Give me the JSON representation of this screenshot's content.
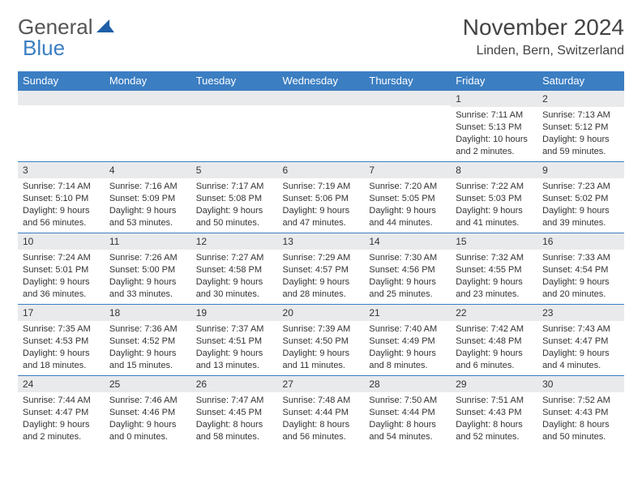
{
  "brand": {
    "part1": "General",
    "part2": "Blue"
  },
  "title": "November 2024",
  "location": "Linden, Bern, Switzerland",
  "colors": {
    "header_bar": "#3b7ec2",
    "daynum_bg": "#e9eaec",
    "text": "#333333",
    "background": "#ffffff"
  },
  "day_headers": [
    "Sunday",
    "Monday",
    "Tuesday",
    "Wednesday",
    "Thursday",
    "Friday",
    "Saturday"
  ],
  "weeks": [
    [
      {
        "n": "",
        "sunrise": "",
        "sunset": "",
        "daylight": ""
      },
      {
        "n": "",
        "sunrise": "",
        "sunset": "",
        "daylight": ""
      },
      {
        "n": "",
        "sunrise": "",
        "sunset": "",
        "daylight": ""
      },
      {
        "n": "",
        "sunrise": "",
        "sunset": "",
        "daylight": ""
      },
      {
        "n": "",
        "sunrise": "",
        "sunset": "",
        "daylight": ""
      },
      {
        "n": "1",
        "sunrise": "Sunrise: 7:11 AM",
        "sunset": "Sunset: 5:13 PM",
        "daylight": "Daylight: 10 hours and 2 minutes."
      },
      {
        "n": "2",
        "sunrise": "Sunrise: 7:13 AM",
        "sunset": "Sunset: 5:12 PM",
        "daylight": "Daylight: 9 hours and 59 minutes."
      }
    ],
    [
      {
        "n": "3",
        "sunrise": "Sunrise: 7:14 AM",
        "sunset": "Sunset: 5:10 PM",
        "daylight": "Daylight: 9 hours and 56 minutes."
      },
      {
        "n": "4",
        "sunrise": "Sunrise: 7:16 AM",
        "sunset": "Sunset: 5:09 PM",
        "daylight": "Daylight: 9 hours and 53 minutes."
      },
      {
        "n": "5",
        "sunrise": "Sunrise: 7:17 AM",
        "sunset": "Sunset: 5:08 PM",
        "daylight": "Daylight: 9 hours and 50 minutes."
      },
      {
        "n": "6",
        "sunrise": "Sunrise: 7:19 AM",
        "sunset": "Sunset: 5:06 PM",
        "daylight": "Daylight: 9 hours and 47 minutes."
      },
      {
        "n": "7",
        "sunrise": "Sunrise: 7:20 AM",
        "sunset": "Sunset: 5:05 PM",
        "daylight": "Daylight: 9 hours and 44 minutes."
      },
      {
        "n": "8",
        "sunrise": "Sunrise: 7:22 AM",
        "sunset": "Sunset: 5:03 PM",
        "daylight": "Daylight: 9 hours and 41 minutes."
      },
      {
        "n": "9",
        "sunrise": "Sunrise: 7:23 AM",
        "sunset": "Sunset: 5:02 PM",
        "daylight": "Daylight: 9 hours and 39 minutes."
      }
    ],
    [
      {
        "n": "10",
        "sunrise": "Sunrise: 7:24 AM",
        "sunset": "Sunset: 5:01 PM",
        "daylight": "Daylight: 9 hours and 36 minutes."
      },
      {
        "n": "11",
        "sunrise": "Sunrise: 7:26 AM",
        "sunset": "Sunset: 5:00 PM",
        "daylight": "Daylight: 9 hours and 33 minutes."
      },
      {
        "n": "12",
        "sunrise": "Sunrise: 7:27 AM",
        "sunset": "Sunset: 4:58 PM",
        "daylight": "Daylight: 9 hours and 30 minutes."
      },
      {
        "n": "13",
        "sunrise": "Sunrise: 7:29 AM",
        "sunset": "Sunset: 4:57 PM",
        "daylight": "Daylight: 9 hours and 28 minutes."
      },
      {
        "n": "14",
        "sunrise": "Sunrise: 7:30 AM",
        "sunset": "Sunset: 4:56 PM",
        "daylight": "Daylight: 9 hours and 25 minutes."
      },
      {
        "n": "15",
        "sunrise": "Sunrise: 7:32 AM",
        "sunset": "Sunset: 4:55 PM",
        "daylight": "Daylight: 9 hours and 23 minutes."
      },
      {
        "n": "16",
        "sunrise": "Sunrise: 7:33 AM",
        "sunset": "Sunset: 4:54 PM",
        "daylight": "Daylight: 9 hours and 20 minutes."
      }
    ],
    [
      {
        "n": "17",
        "sunrise": "Sunrise: 7:35 AM",
        "sunset": "Sunset: 4:53 PM",
        "daylight": "Daylight: 9 hours and 18 minutes."
      },
      {
        "n": "18",
        "sunrise": "Sunrise: 7:36 AM",
        "sunset": "Sunset: 4:52 PM",
        "daylight": "Daylight: 9 hours and 15 minutes."
      },
      {
        "n": "19",
        "sunrise": "Sunrise: 7:37 AM",
        "sunset": "Sunset: 4:51 PM",
        "daylight": "Daylight: 9 hours and 13 minutes."
      },
      {
        "n": "20",
        "sunrise": "Sunrise: 7:39 AM",
        "sunset": "Sunset: 4:50 PM",
        "daylight": "Daylight: 9 hours and 11 minutes."
      },
      {
        "n": "21",
        "sunrise": "Sunrise: 7:40 AM",
        "sunset": "Sunset: 4:49 PM",
        "daylight": "Daylight: 9 hours and 8 minutes."
      },
      {
        "n": "22",
        "sunrise": "Sunrise: 7:42 AM",
        "sunset": "Sunset: 4:48 PM",
        "daylight": "Daylight: 9 hours and 6 minutes."
      },
      {
        "n": "23",
        "sunrise": "Sunrise: 7:43 AM",
        "sunset": "Sunset: 4:47 PM",
        "daylight": "Daylight: 9 hours and 4 minutes."
      }
    ],
    [
      {
        "n": "24",
        "sunrise": "Sunrise: 7:44 AM",
        "sunset": "Sunset: 4:47 PM",
        "daylight": "Daylight: 9 hours and 2 minutes."
      },
      {
        "n": "25",
        "sunrise": "Sunrise: 7:46 AM",
        "sunset": "Sunset: 4:46 PM",
        "daylight": "Daylight: 9 hours and 0 minutes."
      },
      {
        "n": "26",
        "sunrise": "Sunrise: 7:47 AM",
        "sunset": "Sunset: 4:45 PM",
        "daylight": "Daylight: 8 hours and 58 minutes."
      },
      {
        "n": "27",
        "sunrise": "Sunrise: 7:48 AM",
        "sunset": "Sunset: 4:44 PM",
        "daylight": "Daylight: 8 hours and 56 minutes."
      },
      {
        "n": "28",
        "sunrise": "Sunrise: 7:50 AM",
        "sunset": "Sunset: 4:44 PM",
        "daylight": "Daylight: 8 hours and 54 minutes."
      },
      {
        "n": "29",
        "sunrise": "Sunrise: 7:51 AM",
        "sunset": "Sunset: 4:43 PM",
        "daylight": "Daylight: 8 hours and 52 minutes."
      },
      {
        "n": "30",
        "sunrise": "Sunrise: 7:52 AM",
        "sunset": "Sunset: 4:43 PM",
        "daylight": "Daylight: 8 hours and 50 minutes."
      }
    ]
  ]
}
